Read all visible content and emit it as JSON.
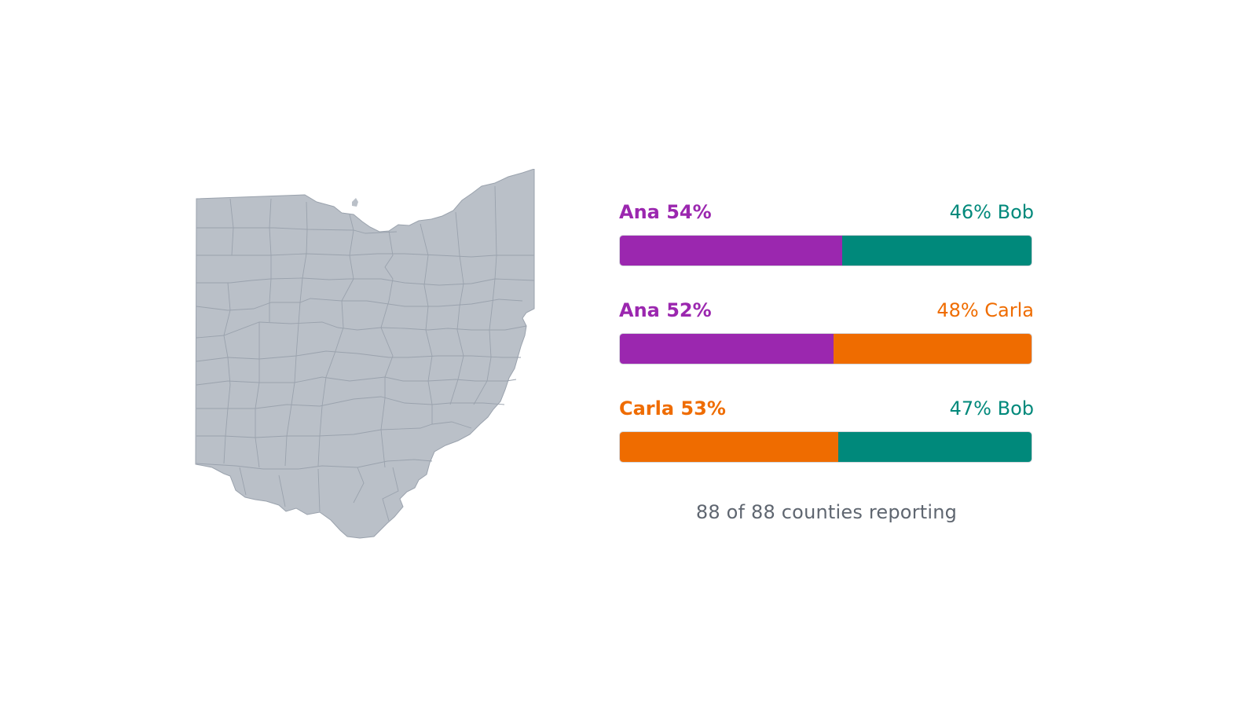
{
  "map": {
    "icon": "ohio-county-map",
    "fill": "#bac0c8",
    "stroke": "#9aa2ad"
  },
  "chart_data": {
    "type": "bar",
    "matchups": [
      {
        "left": {
          "name": "Ana",
          "value": 54,
          "label": "Ana 54%",
          "color": "#9b27af"
        },
        "right": {
          "name": "Bob",
          "value": 46,
          "label": "46% Bob",
          "color": "#00897b"
        }
      },
      {
        "left": {
          "name": "Ana",
          "value": 52,
          "label": "Ana 52%",
          "color": "#9b27af"
        },
        "right": {
          "name": "Carla",
          "value": 48,
          "label": "48% Carla",
          "color": "#ef6c00"
        }
      },
      {
        "left": {
          "name": "Carla",
          "value": 53,
          "label": "Carla 53%",
          "color": "#ef6c00"
        },
        "right": {
          "name": "Bob",
          "value": 47,
          "label": "47% Bob",
          "color": "#00897b"
        }
      }
    ],
    "footer": "88 of 88 counties reporting"
  }
}
